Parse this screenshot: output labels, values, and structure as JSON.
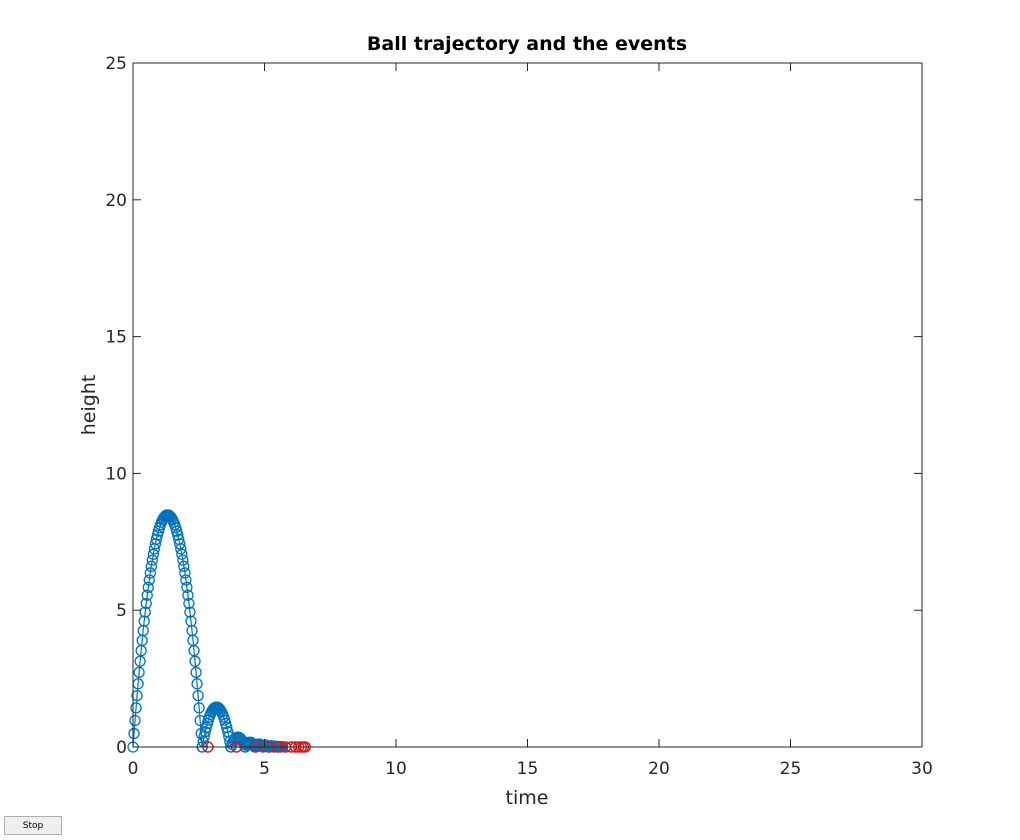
{
  "controls": {
    "stop_label": "Stop"
  },
  "chart_data": {
    "type": "line",
    "title": "Ball trajectory and the events",
    "xlabel": "time",
    "ylabel": "height",
    "xlim": [
      0,
      30
    ],
    "ylim": [
      0,
      25
    ],
    "xticks": [
      0,
      5,
      10,
      15,
      20,
      25,
      30
    ],
    "yticks": [
      0,
      5,
      10,
      15,
      20,
      25
    ],
    "grid": false,
    "box": true,
    "colors": {
      "trajectory": "#0072BD",
      "events": "#D7191C",
      "axis": "#262626"
    },
    "series": [
      {
        "style": "line-with-circle-markers",
        "bounces": [
          {
            "t_start": 0.0,
            "v0": 12.9
          },
          {
            "t_start": 2.63,
            "v0": 5.35
          },
          {
            "t_start": 3.72,
            "v0": 2.65
          },
          {
            "t_start": 4.26,
            "v0": 1.85
          },
          {
            "t_start": 4.64,
            "v0": 1.45
          },
          {
            "t_start": 4.94,
            "v0": 1.12
          },
          {
            "t_start": 5.17,
            "v0": 0.9
          },
          {
            "t_start": 5.35,
            "v0": 0.7
          },
          {
            "t_start": 5.49,
            "v0": 0.55
          },
          {
            "t_start": 5.6,
            "v0": 0.42
          }
        ],
        "gravity": 9.81
      },
      {
        "style": "circle-markers",
        "x": [
          2.85,
          3.93,
          4.67,
          5.15,
          5.53,
          5.8,
          6.02,
          6.18,
          6.3,
          6.4,
          6.48,
          6.55
        ],
        "y": [
          0,
          0,
          0,
          0,
          0,
          0,
          0,
          0,
          0,
          0,
          0,
          0
        ]
      }
    ]
  }
}
